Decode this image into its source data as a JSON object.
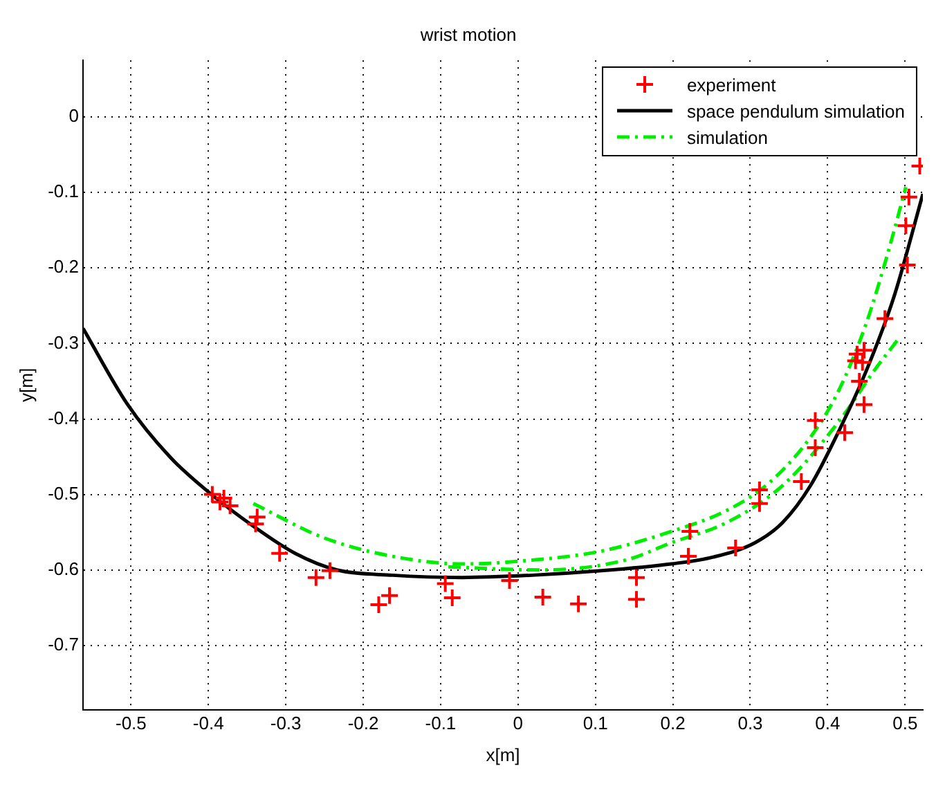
{
  "chart_data": {
    "type": "line",
    "title": "wrist motion",
    "xlabel": "x[m]",
    "ylabel": "y[m]",
    "xlim": [
      -0.562,
      0.523
    ],
    "ylim": [
      -0.785,
      0.075
    ],
    "xticks": [
      -0.5,
      -0.4,
      -0.3,
      -0.2,
      -0.1,
      0,
      0.1,
      0.2,
      0.3,
      0.4,
      0.5
    ],
    "yticks": [
      -0.7,
      -0.6,
      -0.5,
      -0.4,
      -0.3,
      -0.2,
      -0.1,
      0
    ],
    "grid": true,
    "legend": "top right",
    "series": [
      {
        "name": "experiment",
        "type": "scatter",
        "marker": "cross",
        "color": "#ff0000",
        "x": [
          -0.395,
          -0.38,
          -0.372,
          -0.385,
          -0.337,
          -0.339,
          -0.308,
          -0.261,
          -0.243,
          -0.18,
          -0.166,
          -0.094,
          -0.085,
          -0.011,
          0.032,
          0.078,
          0.153,
          0.153,
          0.22,
          0.222,
          0.281,
          0.312,
          0.312,
          0.366,
          0.384,
          0.384,
          0.422,
          0.447,
          0.441,
          0.438,
          0.447,
          0.445,
          0.436,
          0.474,
          0.503,
          0.501,
          0.505,
          0.519
        ],
        "values": [
          -0.5,
          -0.505,
          -0.515,
          -0.51,
          -0.53,
          -0.539,
          -0.578,
          -0.61,
          -0.601,
          -0.646,
          -0.634,
          -0.618,
          -0.637,
          -0.614,
          -0.636,
          -0.645,
          -0.61,
          -0.639,
          -0.582,
          -0.549,
          -0.571,
          -0.494,
          -0.512,
          -0.483,
          -0.438,
          -0.402,
          -0.418,
          -0.381,
          -0.35,
          -0.314,
          -0.309,
          -0.325,
          -0.323,
          -0.267,
          -0.196,
          -0.144,
          -0.106,
          -0.065
        ]
      },
      {
        "name": "space pendulum simulation",
        "type": "line",
        "line_style": "solid",
        "color": "#000000",
        "x": [
          -0.562,
          -0.505,
          -0.45,
          -0.396,
          -0.342,
          -0.288,
          -0.234,
          -0.162,
          -0.072,
          0.018,
          0.108,
          0.198,
          0.252,
          0.306,
          0.342,
          0.378,
          0.414,
          0.45,
          0.486,
          0.523
        ],
        "values": [
          -0.28,
          -0.38,
          -0.45,
          -0.5,
          -0.542,
          -0.578,
          -0.6,
          -0.607,
          -0.61,
          -0.607,
          -0.601,
          -0.592,
          -0.583,
          -0.564,
          -0.537,
          -0.488,
          -0.417,
          -0.336,
          -0.237,
          -0.102
        ]
      },
      {
        "name": "simulation",
        "type": "line",
        "line_style": "dashed",
        "color": "#00ee00",
        "x": [
          -0.342,
          -0.252,
          -0.162,
          -0.072,
          0.018,
          0.108,
          0.198,
          0.27,
          0.324,
          0.378,
          0.414,
          0.45,
          0.477,
          0.501
        ],
        "values": [
          -0.512,
          -0.557,
          -0.582,
          -0.592,
          -0.587,
          -0.575,
          -0.549,
          -0.521,
          -0.485,
          -0.424,
          -0.363,
          -0.273,
          -0.183,
          -0.093
        ]
      },
      {
        "type": "line",
        "line_style": "dashed",
        "color": "#00ee00",
        "x": [
          -0.09,
          0.03,
          0.139,
          0.198,
          0.27,
          0.342,
          0.414,
          0.463,
          0.49
        ],
        "values": [
          -0.596,
          -0.6,
          -0.587,
          -0.564,
          -0.537,
          -0.488,
          -0.404,
          -0.332,
          -0.296
        ]
      }
    ]
  }
}
